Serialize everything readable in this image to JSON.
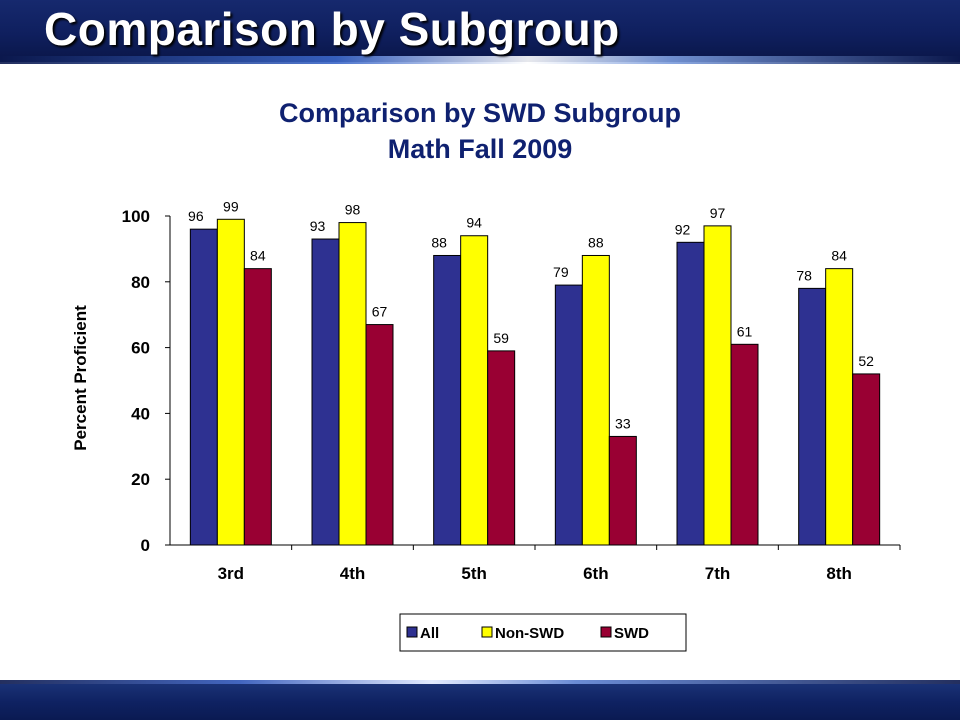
{
  "slide": {
    "title": "Comparison by Subgroup"
  },
  "colors": {
    "all": "#2e3191",
    "non_swd": "#ffff00",
    "swd": "#990033"
  },
  "chart_data": {
    "type": "bar",
    "title": "Comparison by SWD Subgroup",
    "subtitle": "Math Fall 2009",
    "xlabel": "",
    "ylabel": "Percent Proficient",
    "ylim": [
      0,
      100
    ],
    "yticks": [
      "0",
      "20",
      "40",
      "60",
      "80",
      "100"
    ],
    "categories": [
      "3rd",
      "4th",
      "5th",
      "6th",
      "7th",
      "8th"
    ],
    "series": [
      {
        "name": "All",
        "values": [
          96,
          93,
          88,
          79,
          92,
          78
        ]
      },
      {
        "name": "Non-SWD",
        "values": [
          99,
          98,
          94,
          88,
          97,
          84
        ]
      },
      {
        "name": "SWD",
        "values": [
          84,
          67,
          59,
          33,
          61,
          52
        ]
      }
    ],
    "grid": false,
    "legend": "bottom",
    "data_labels": true
  }
}
